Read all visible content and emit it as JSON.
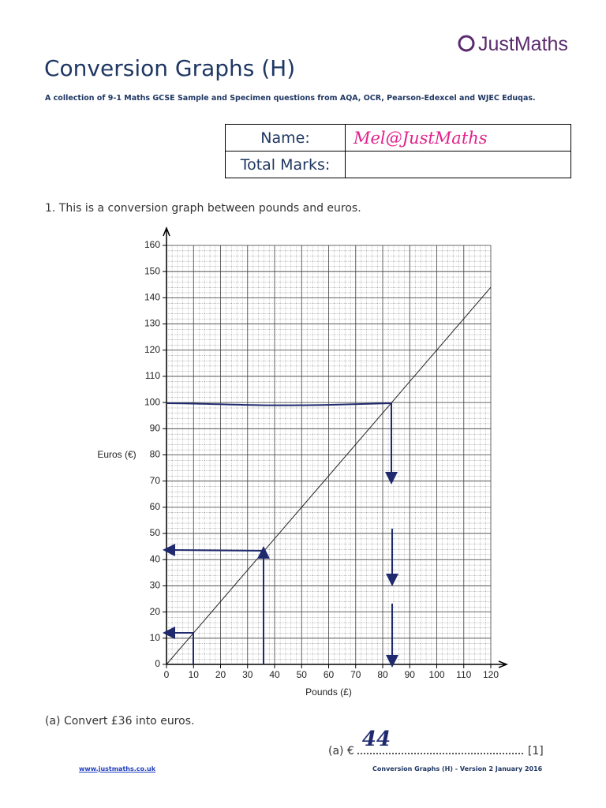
{
  "header": {
    "logo": "JustMaths",
    "title": "Conversion Graphs (H)",
    "subtitle": "A collection of 9-1 Maths GCSE Sample and Specimen questions from AQA, OCR, Pearson-Edexcel and WJEC Eduqas."
  },
  "marks_table": {
    "rows": [
      {
        "label": "Name:",
        "value": "Mel@JustMaths"
      },
      {
        "label": "Total Marks:"
      }
    ]
  },
  "question": {
    "text": "1. This is a conversion graph between pounds and euros."
  },
  "chart_data": {
    "type": "line",
    "x_label": "Pounds (£)",
    "y_label": "Euros (€)",
    "x": [
      0,
      120
    ],
    "values": [
      0,
      144
    ],
    "color": "#222222",
    "xlim": [
      0,
      120
    ],
    "ylim": [
      0,
      160
    ],
    "xticks": [
      0,
      10,
      20,
      30,
      40,
      50,
      60,
      70,
      80,
      90,
      100,
      110,
      120
    ],
    "yticks": [
      0,
      10,
      20,
      30,
      40,
      50,
      60,
      70,
      80,
      90,
      100,
      110,
      120,
      130,
      140,
      150,
      160
    ],
    "grid": true
  },
  "part_a": {
    "question": "(a) Convert £36 into euros.",
    "answer_prefix": "(a) €",
    "answer": "44",
    "mark": "[1]"
  },
  "footer": {
    "left": "www.justmaths.co.uk",
    "right": "Conversion Graphs (H) - Version 2 January 2016"
  }
}
